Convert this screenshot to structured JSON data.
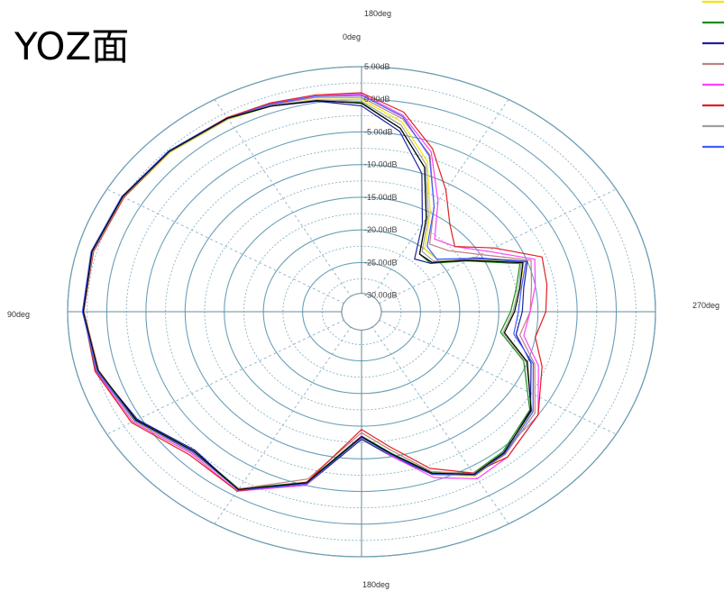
{
  "title": "YOZ面",
  "top_cutoff_label": "180deg",
  "chart_data": {
    "type": "polar-line",
    "angle_labels": [
      {
        "name": "0deg",
        "angle": 0
      },
      {
        "name": "90deg",
        "angle": 90
      },
      {
        "name": "180deg",
        "angle": 180
      },
      {
        "name": "270deg",
        "angle": 270
      }
    ],
    "radial_labels": [
      "5.00dB",
      "0.00dB",
      "-5.00dB",
      "-10.00dB",
      "-15.00dB",
      "-20.00dB",
      "-25.00dB",
      "-30.00dB"
    ],
    "radial_values": [
      5,
      0,
      -5,
      -10,
      -15,
      -20,
      -25,
      -30
    ],
    "rlim": [
      -30,
      5
    ],
    "angle_direction": "counter-clockwise from top",
    "grid": true,
    "legend_position": "top-right",
    "colors": [
      "#f5e400",
      "#1a8f1a",
      "#2020a0",
      "#c08080",
      "#ff40ff",
      "#e02020",
      "#a0a0a0",
      "#4060ff",
      "#000000"
    ],
    "series": [
      {
        "angles": [
          0,
          10,
          20,
          30,
          45,
          60,
          75,
          90,
          105,
          120,
          135,
          150,
          165,
          180,
          190,
          200,
          210,
          220,
          235,
          250,
          260,
          270,
          280,
          290,
          300,
          310,
          320,
          330,
          340,
          350
        ],
        "values": [
          0.0,
          0.5,
          1.0,
          1.5,
          2.0,
          2.5,
          3.0,
          3.0,
          2.5,
          1.0,
          -2.0,
          -1.0,
          -5.0,
          -13.0,
          -10.0,
          -6.0,
          -3.5,
          -4.0,
          -6.0,
          -10.0,
          -14.0,
          -13.0,
          -12.0,
          -10.5,
          -16.5,
          -20.0,
          -20.0,
          -15.0,
          -8.0,
          -3.0
        ]
      },
      {
        "angles": [
          0,
          10,
          20,
          30,
          45,
          60,
          75,
          90,
          105,
          120,
          135,
          150,
          165,
          180,
          190,
          200,
          210,
          220,
          235,
          250,
          260,
          270,
          280,
          290,
          300,
          310,
          320,
          330,
          340,
          350
        ],
        "values": [
          -0.5,
          0.3,
          1.0,
          1.6,
          2.1,
          2.7,
          3.1,
          3.0,
          2.3,
          0.6,
          -2.3,
          -1.2,
          -5.5,
          -13.5,
          -10.5,
          -6.3,
          -4.0,
          -4.5,
          -6.3,
          -10.5,
          -14.5,
          -13.5,
          -12.5,
          -11.0,
          -17.0,
          -21.0,
          -21.0,
          -16.0,
          -9.0,
          -4.0
        ]
      },
      {
        "angles": [
          0,
          10,
          20,
          30,
          45,
          60,
          75,
          90,
          105,
          120,
          135,
          150,
          165,
          180,
          190,
          200,
          210,
          220,
          235,
          250,
          260,
          270,
          280,
          290,
          300,
          310,
          320,
          330,
          340,
          350
        ],
        "values": [
          -1.0,
          0.2,
          1.0,
          1.8,
          2.3,
          2.8,
          3.2,
          3.1,
          2.4,
          0.5,
          -2.5,
          -1.0,
          -5.0,
          -13.0,
          -10.0,
          -6.0,
          -3.7,
          -4.2,
          -6.2,
          -9.5,
          -12.5,
          -12.0,
          -11.5,
          -10.0,
          -16.0,
          -21.0,
          -22.0,
          -17.0,
          -10.0,
          -4.5
        ]
      },
      {
        "angles": [
          0,
          10,
          20,
          30,
          45,
          60,
          75,
          90,
          105,
          120,
          135,
          150,
          165,
          180,
          190,
          200,
          210,
          220,
          235,
          250,
          260,
          270,
          280,
          290,
          300,
          310,
          320,
          330,
          340,
          350
        ],
        "values": [
          0.3,
          0.8,
          1.2,
          1.7,
          2.2,
          2.7,
          3.0,
          2.9,
          2.2,
          0.8,
          -2.0,
          -1.2,
          -6.0,
          -14.0,
          -11.0,
          -6.5,
          -3.8,
          -4.0,
          -5.5,
          -9.0,
          -12.0,
          -11.0,
          -10.5,
          -9.5,
          -15.0,
          -18.0,
          -19.0,
          -14.0,
          -7.0,
          -2.5
        ]
      },
      {
        "angles": [
          0,
          10,
          20,
          30,
          45,
          60,
          75,
          90,
          105,
          120,
          135,
          150,
          165,
          180,
          190,
          200,
          210,
          220,
          235,
          250,
          260,
          270,
          280,
          290,
          300,
          310,
          320,
          330,
          340,
          350
        ],
        "values": [
          0.8,
          1.0,
          1.4,
          1.8,
          2.2,
          2.6,
          3.0,
          3.0,
          2.6,
          1.2,
          -1.8,
          -0.8,
          -5.0,
          -13.5,
          -10.0,
          -5.5,
          -3.0,
          -3.5,
          -5.0,
          -8.5,
          -11.5,
          -11.0,
          -10.0,
          -9.0,
          -14.0,
          -17.0,
          -18.0,
          -13.0,
          -6.5,
          -2.0
        ]
      },
      {
        "angles": [
          0,
          10,
          20,
          30,
          45,
          60,
          75,
          90,
          105,
          120,
          135,
          150,
          165,
          180,
          190,
          200,
          210,
          220,
          235,
          250,
          260,
          270,
          280,
          290,
          300,
          310,
          320,
          330,
          340,
          350
        ],
        "values": [
          1.0,
          1.2,
          1.5,
          1.8,
          2.1,
          2.5,
          2.9,
          3.0,
          2.7,
          1.4,
          -1.5,
          -0.8,
          -5.5,
          -14.5,
          -11.5,
          -7.0,
          -4.0,
          -3.5,
          -5.0,
          -8.0,
          -10.0,
          -9.0,
          -8.5,
          -8.0,
          -13.0,
          -17.0,
          -15.0,
          -11.0,
          -6.0,
          -1.5
        ]
      },
      {
        "angles": [
          0,
          10,
          20,
          30,
          45,
          60,
          75,
          90,
          105,
          120,
          135,
          150,
          165,
          180,
          190,
          200,
          210,
          220,
          235,
          250,
          260,
          270,
          280,
          290,
          300,
          310,
          320,
          330,
          340,
          350
        ],
        "values": [
          -0.3,
          0.4,
          1.1,
          1.6,
          2.1,
          2.6,
          3.0,
          3.0,
          2.4,
          0.8,
          -2.2,
          -1.1,
          -5.3,
          -13.2,
          -10.3,
          -6.2,
          -3.9,
          -4.3,
          -6.0,
          -10.2,
          -14.2,
          -13.2,
          -12.2,
          -10.8,
          -16.6,
          -20.5,
          -20.5,
          -15.5,
          -8.5,
          -3.5
        ]
      },
      {
        "angles": [
          0,
          10,
          20,
          30,
          45,
          60,
          75,
          90,
          105,
          120,
          135,
          150,
          165,
          180,
          190,
          200,
          210,
          220,
          235,
          250,
          260,
          270,
          280,
          290,
          300,
          310,
          320,
          330,
          340,
          350
        ],
        "values": [
          0.6,
          1.0,
          1.3,
          1.7,
          2.3,
          2.8,
          3.2,
          3.1,
          2.5,
          0.9,
          -2.1,
          -1.0,
          -5.2,
          -13.3,
          -10.2,
          -6.1,
          -3.6,
          -4.1,
          -5.8,
          -9.2,
          -12.8,
          -12.5,
          -11.8,
          -10.2,
          -16.2,
          -20.0,
          -19.5,
          -14.0,
          -7.2,
          -2.2
        ]
      },
      {
        "angles": [
          0,
          10,
          20,
          30,
          45,
          60,
          75,
          90,
          105,
          120,
          135,
          150,
          165,
          180,
          190,
          200,
          210,
          220,
          235,
          250,
          260,
          270,
          280,
          290,
          300,
          310,
          320,
          330,
          340,
          350
        ],
        "values": [
          -0.6,
          0.3,
          1.0,
          1.7,
          2.2,
          2.7,
          3.1,
          3.0,
          2.3,
          0.7,
          -2.3,
          -1.1,
          -5.4,
          -13.4,
          -10.4,
          -6.2,
          -3.8,
          -4.3,
          -6.1,
          -10.0,
          -14.0,
          -13.0,
          -12.0,
          -10.6,
          -16.8,
          -20.8,
          -21.0,
          -16.0,
          -9.0,
          -4.0
        ]
      }
    ]
  }
}
